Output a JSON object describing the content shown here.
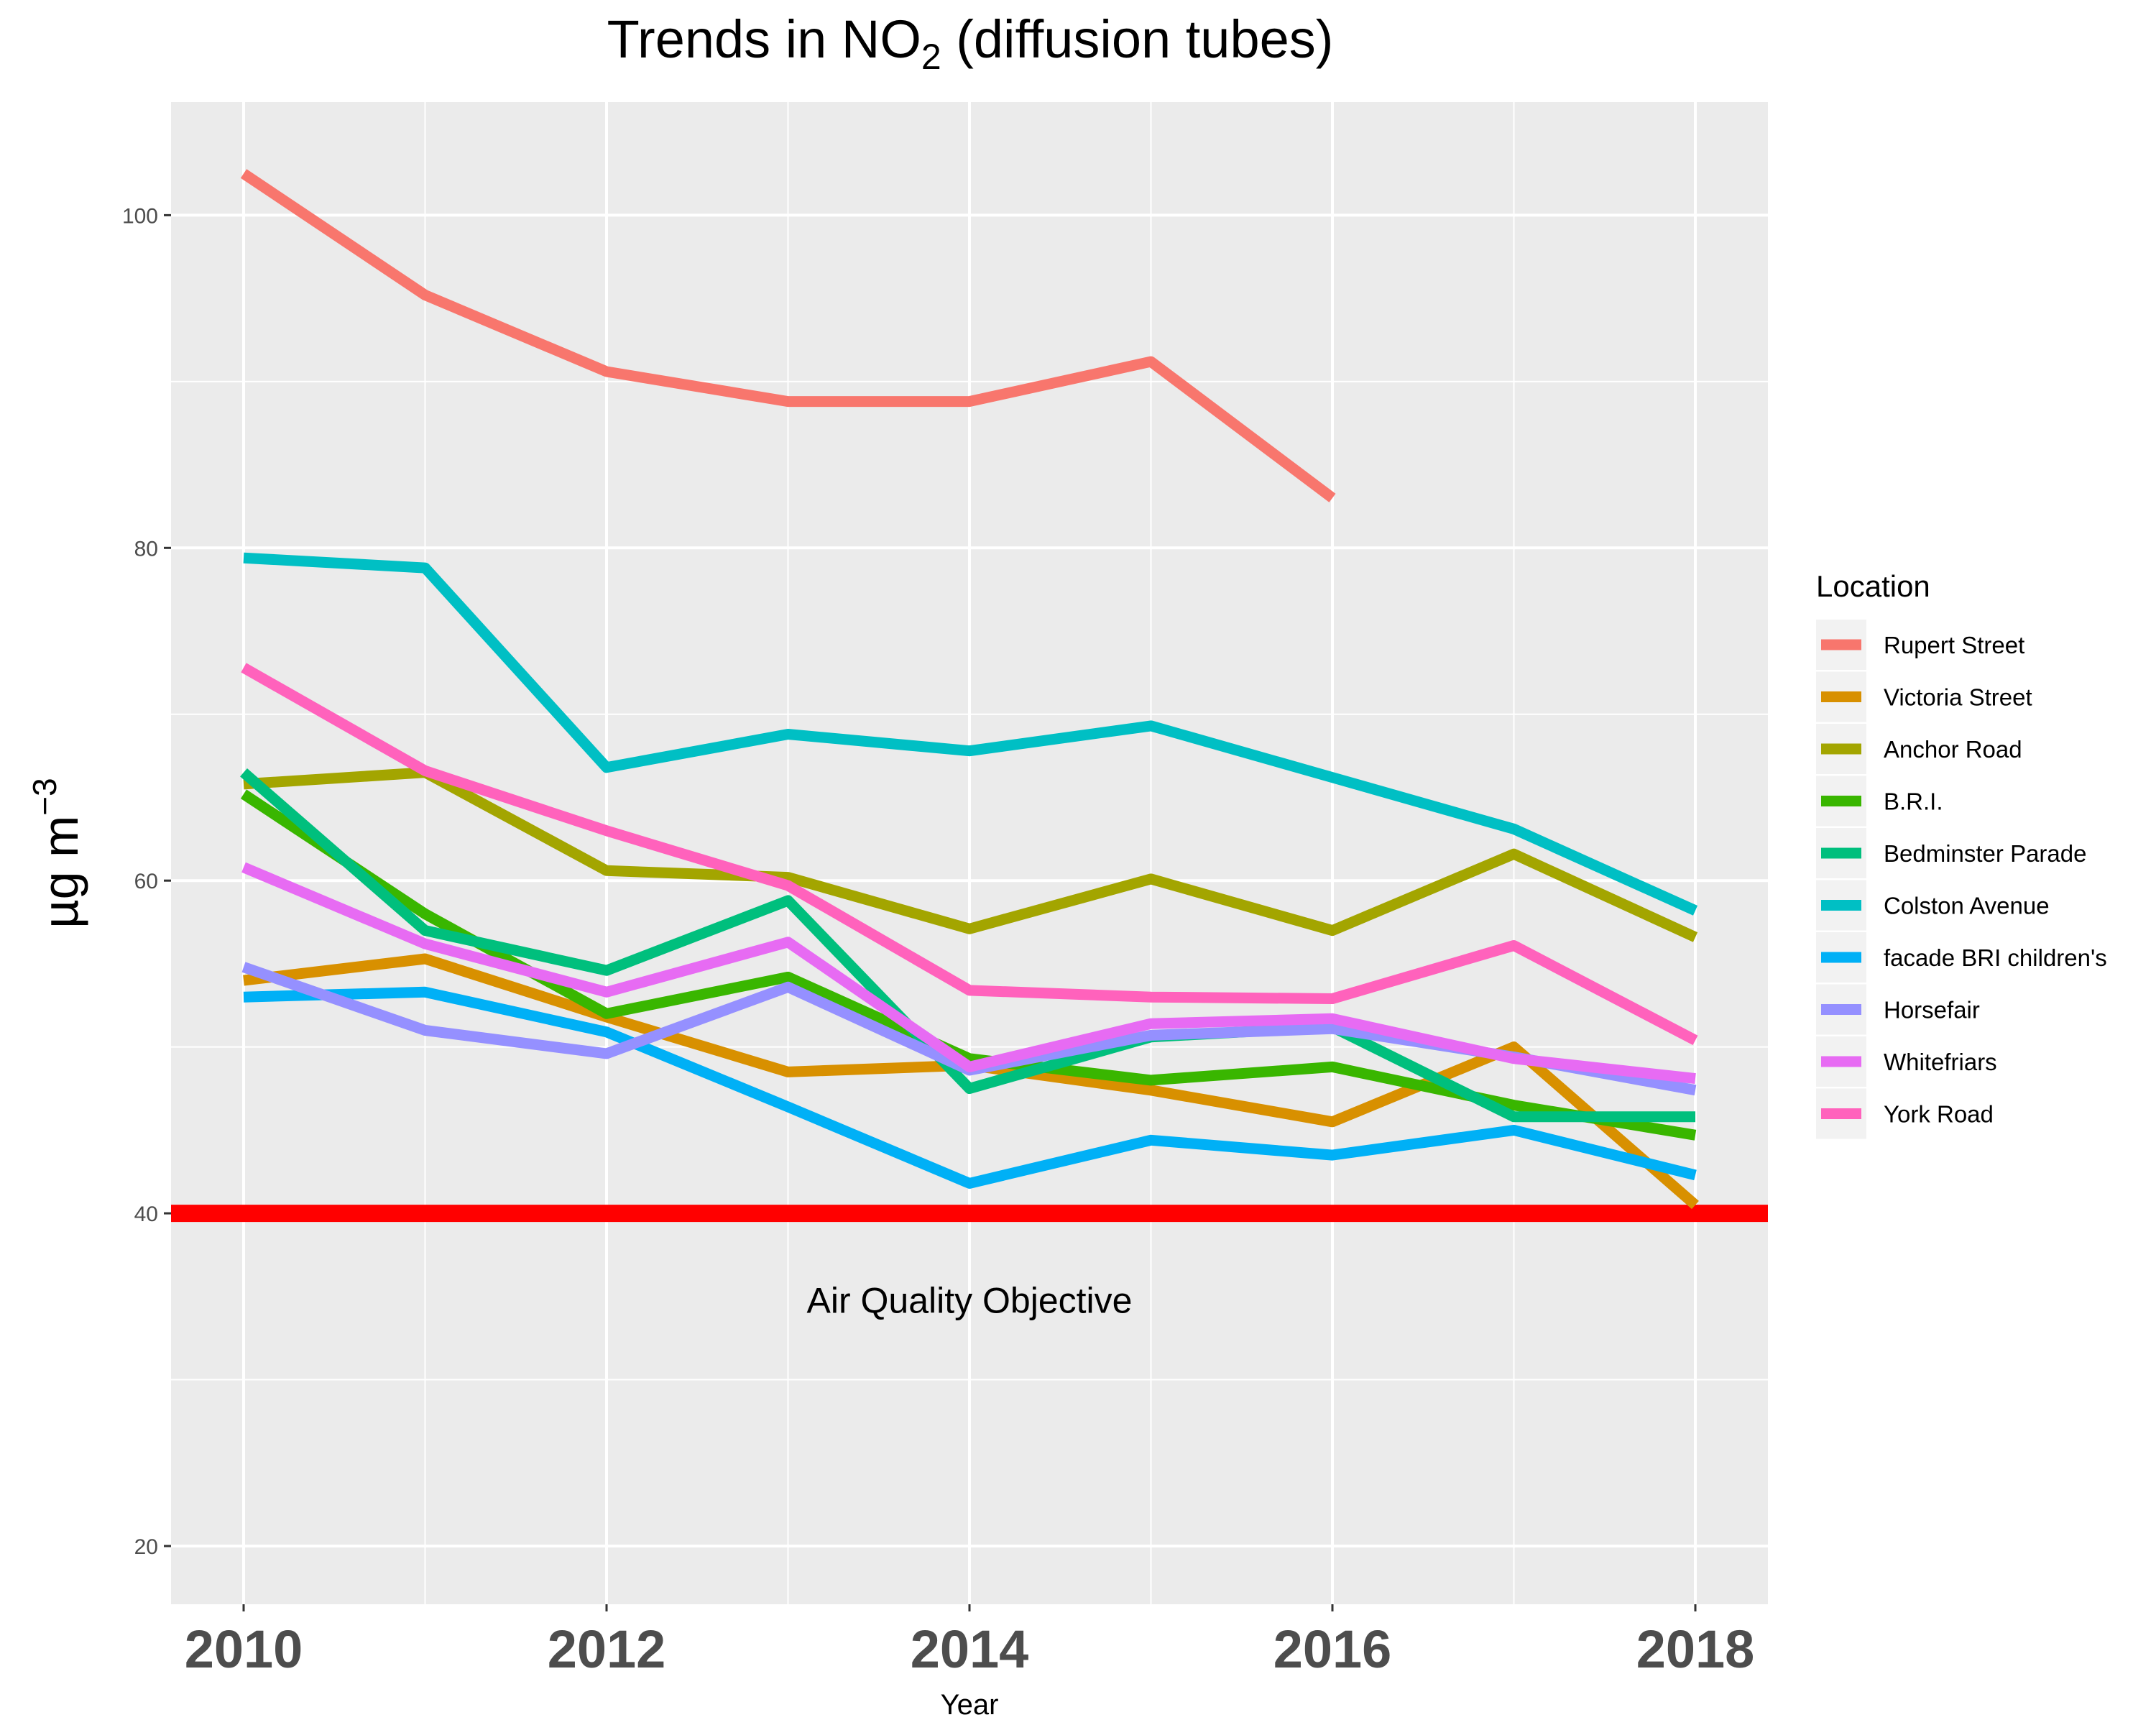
{
  "chart_data": {
    "type": "line",
    "title": {
      "main": "Trends in NO",
      "sub": "2",
      "rest": " (diffusion tubes)"
    },
    "xlabel": "Year",
    "ylabel": {
      "main": "µg m",
      "sup": "−3"
    },
    "xlim": [
      2009.6,
      2018.4
    ],
    "ylim": [
      16.5,
      106.8
    ],
    "x_ticks": [
      2010,
      2012,
      2014,
      2016,
      2018
    ],
    "x_minor": [
      2011,
      2013,
      2015,
      2017
    ],
    "y_ticks": [
      20,
      40,
      60,
      80,
      100
    ],
    "y_minor": [
      30,
      50,
      70,
      90
    ],
    "grid": true,
    "panel_background": "#ebebeb",
    "grid_color": "#ffffff",
    "legend": {
      "title": "Location",
      "placement": "right"
    },
    "reference_line": {
      "y": 40,
      "color": "#ff0000",
      "label": "Air Quality Objective"
    },
    "annotation": {
      "text": "Air Quality Objective",
      "x": 2014,
      "y": 34.8
    },
    "x": [
      2010,
      2011,
      2012,
      2013,
      2014,
      2015,
      2016,
      2017,
      2018
    ],
    "series": [
      {
        "name": "Rupert Street",
        "color": "#f8766d",
        "values": [
          102.5,
          95.2,
          90.6,
          88.8,
          88.8,
          91.2,
          83.0,
          null,
          null
        ]
      },
      {
        "name": "Victoria Street",
        "color": "#d89000",
        "values": [
          54.0,
          55.3,
          51.8,
          48.5,
          48.9,
          47.4,
          45.5,
          50.0,
          40.5
        ]
      },
      {
        "name": "Anchor Road",
        "color": "#a3a500",
        "values": [
          65.8,
          66.5,
          60.6,
          60.2,
          57.1,
          60.1,
          57.0,
          61.6,
          56.6
        ]
      },
      {
        "name": "B.R.I.",
        "color": "#39b600",
        "values": [
          65.2,
          58.0,
          52.0,
          54.2,
          49.3,
          48.0,
          48.8,
          46.5,
          44.7
        ]
      },
      {
        "name": "Bedminster Parade",
        "color": "#00bf7d",
        "values": [
          66.5,
          57.0,
          54.6,
          58.8,
          47.5,
          50.6,
          51.2,
          45.8,
          45.8
        ]
      },
      {
        "name": "Colston Avenue",
        "color": "#00bfc4",
        "values": [
          79.4,
          78.8,
          66.8,
          68.8,
          67.8,
          69.3,
          66.2,
          63.1,
          58.2
        ]
      },
      {
        "name": "facade BRI children's",
        "color": "#00b0f6",
        "values": [
          53.0,
          53.3,
          50.9,
          46.4,
          41.8,
          44.4,
          43.5,
          45.0,
          42.3
        ]
      },
      {
        "name": "Horsefair",
        "color": "#9590ff",
        "values": [
          54.8,
          51.0,
          49.6,
          53.6,
          48.6,
          50.7,
          51.1,
          49.4,
          47.4
        ]
      },
      {
        "name": "Whitefriars",
        "color": "#e76bf3",
        "values": [
          60.8,
          56.2,
          53.3,
          56.3,
          48.8,
          51.4,
          51.7,
          49.3,
          48.1
        ]
      },
      {
        "name": "York Road",
        "color": "#ff62bc",
        "values": [
          72.8,
          66.6,
          63.0,
          59.7,
          53.4,
          53.0,
          52.9,
          56.1,
          50.4
        ]
      }
    ]
  }
}
